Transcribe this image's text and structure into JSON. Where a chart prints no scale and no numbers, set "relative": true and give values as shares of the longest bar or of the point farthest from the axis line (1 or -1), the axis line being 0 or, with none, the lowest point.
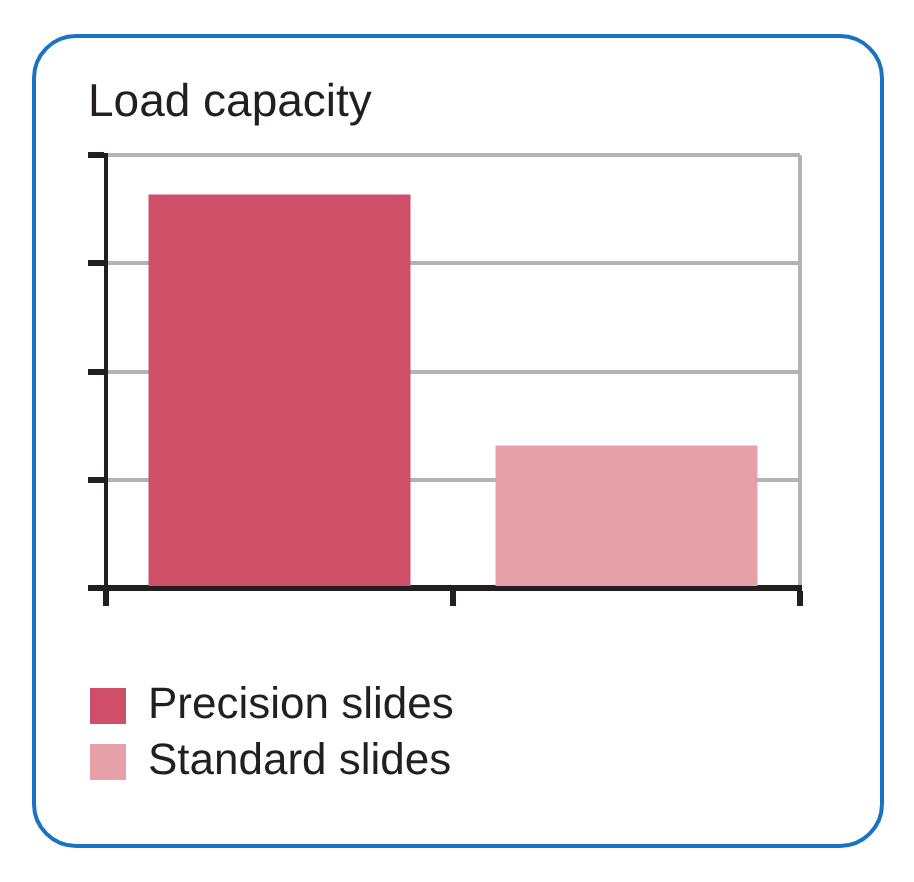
{
  "chart_data": {
    "type": "bar",
    "title": "Load capacity",
    "categories": [
      null
    ],
    "series": [
      {
        "name": "Precision slides",
        "color": "#cf4f69",
        "values": [
          1
        ]
      },
      {
        "name": "Standard slides",
        "color": "#e5a1a7",
        "values": [
          0.362
        ]
      }
    ],
    "relative": true,
    "grid": "y",
    "legend": "bottom left",
    "tick_labels": false
  }
}
